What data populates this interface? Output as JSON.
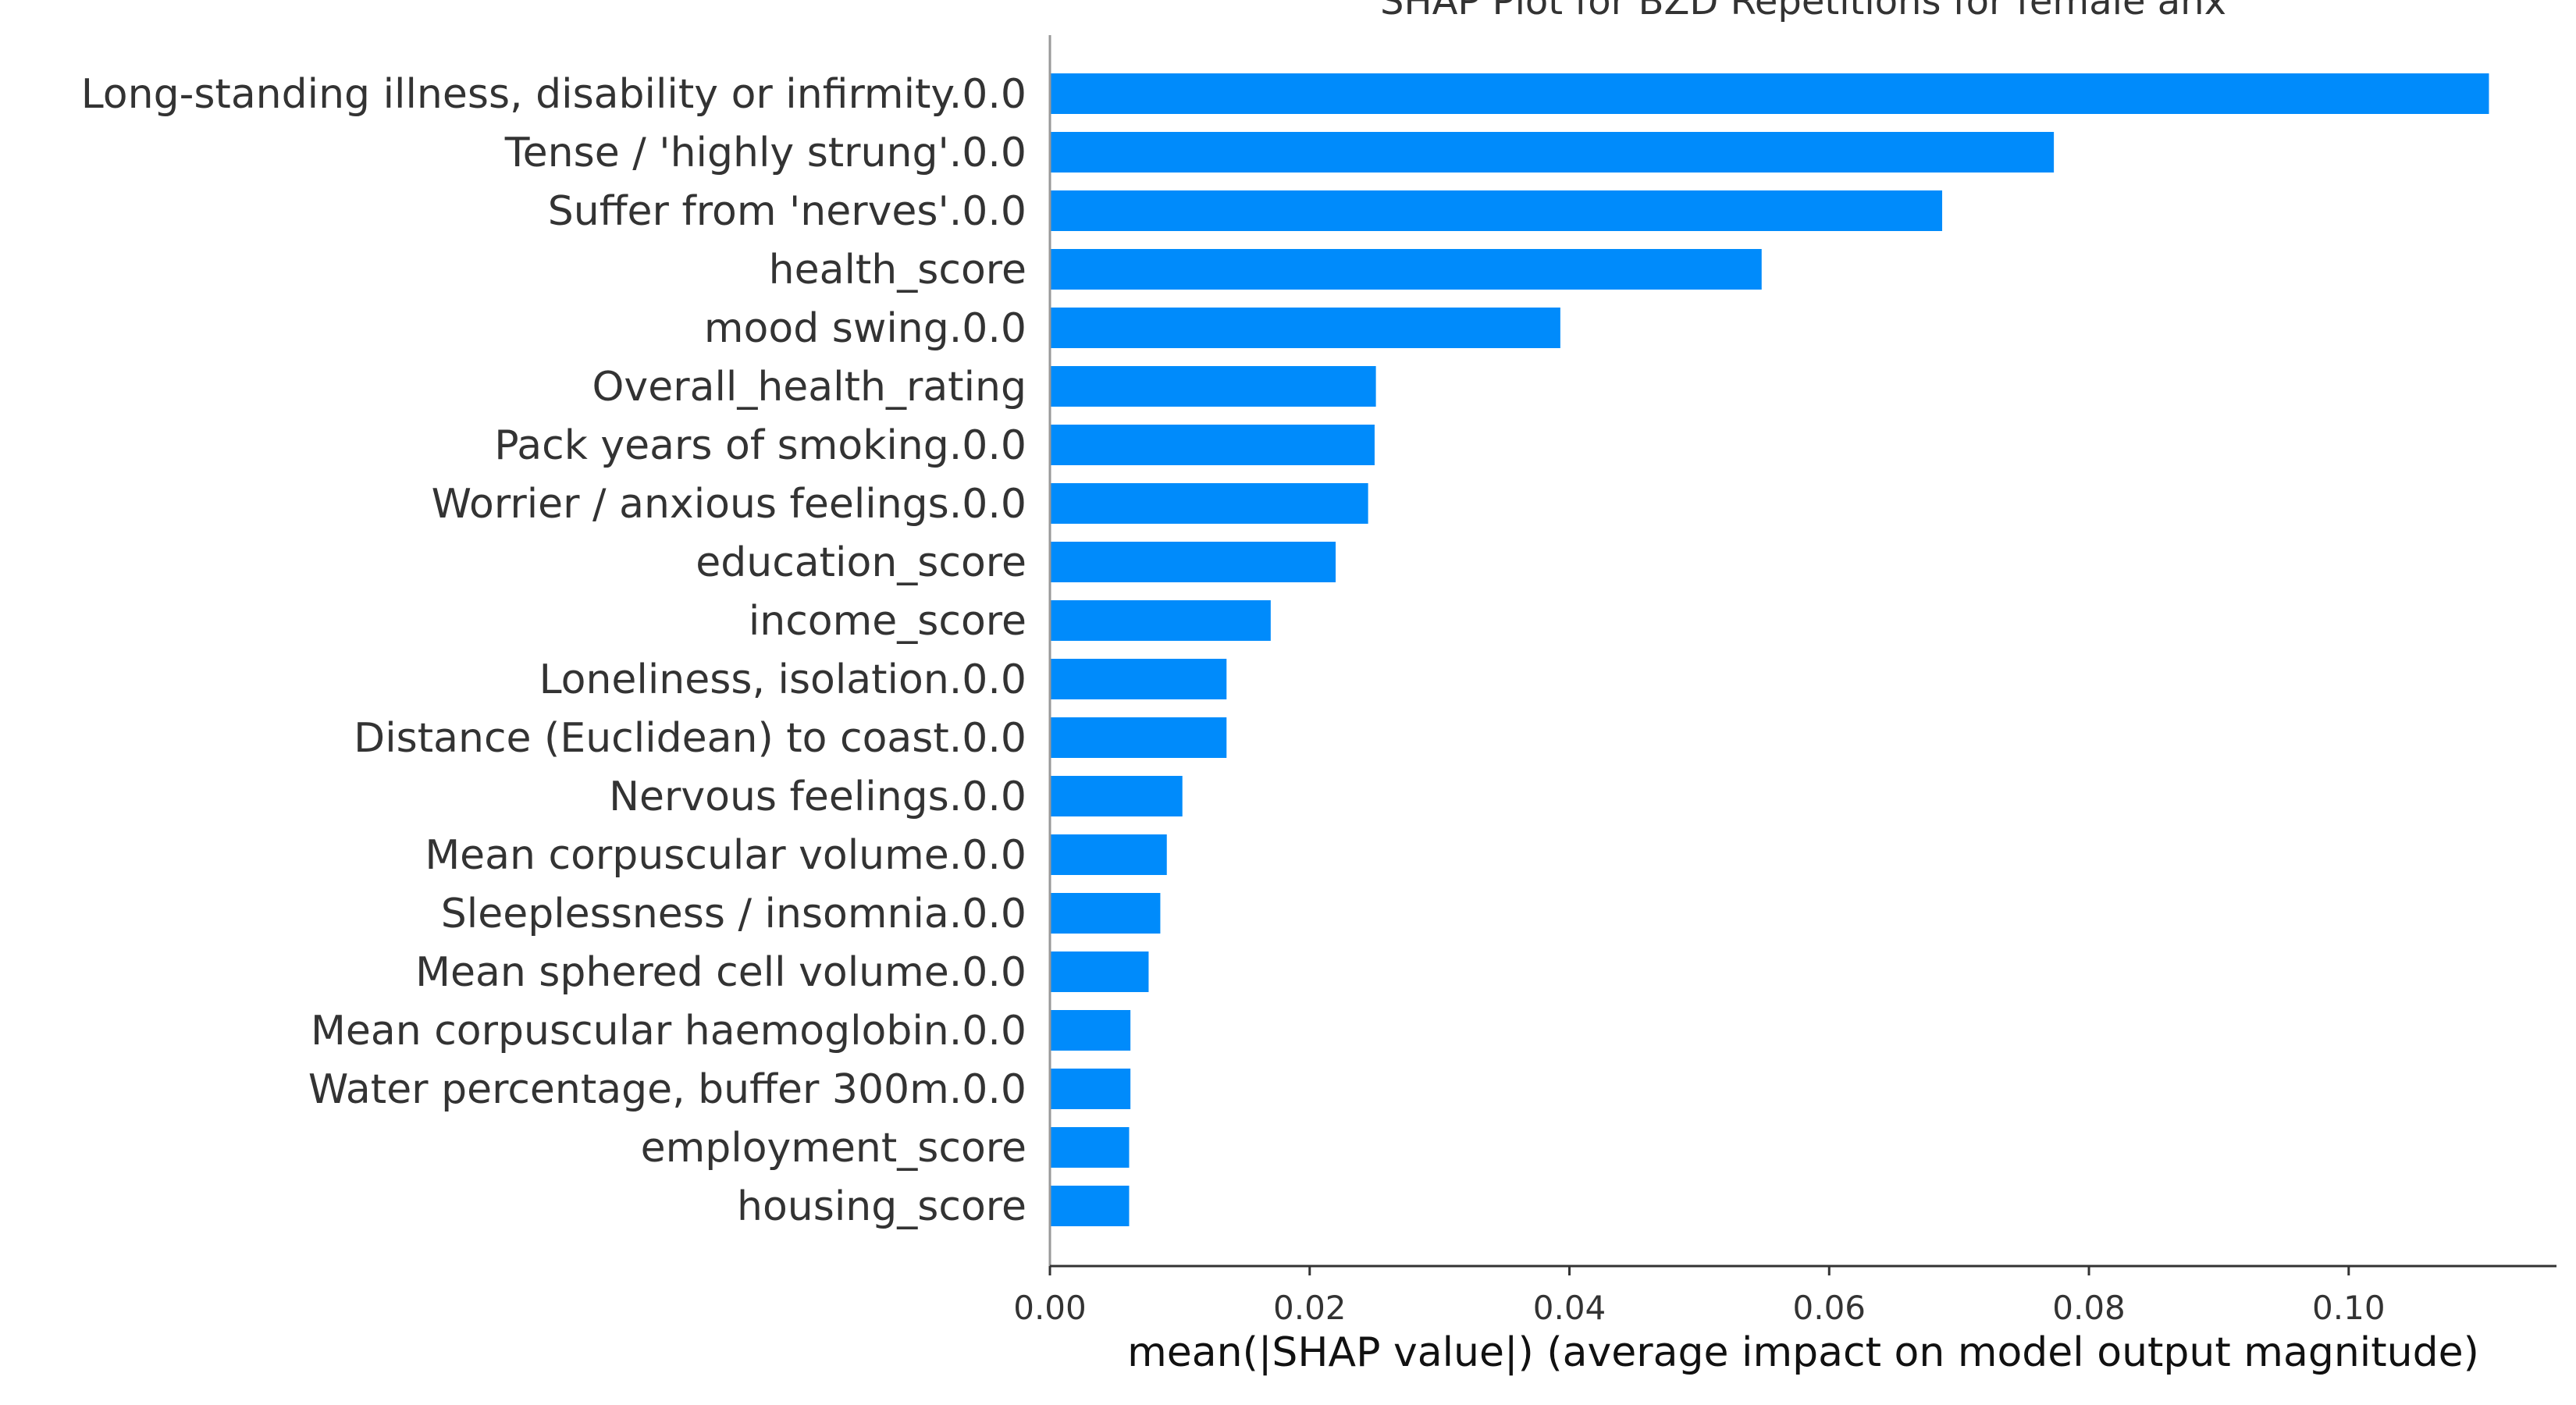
{
  "chart_data": {
    "type": "bar",
    "orientation": "horizontal",
    "title": "SHAP Plot for BZD Repetitions for female anx",
    "xlabel": "mean(|SHAP value|) (average impact on model output magnitude)",
    "ylabel": "",
    "xlim": [
      0.0,
      0.116
    ],
    "xticks": [
      0.0,
      0.02,
      0.04,
      0.06,
      0.08,
      0.1
    ],
    "xtick_labels": [
      "0.00",
      "0.02",
      "0.04",
      "0.06",
      "0.08",
      "0.10"
    ],
    "grid": false,
    "bar_color": "#008bfb",
    "categories": [
      "Long-standing illness, disability or infirmity.0.0",
      "Tense / 'highly strung'.0.0",
      "Suffer from 'nerves'.0.0",
      "health_score",
      "mood swing.0.0",
      "Overall_health_rating",
      "Pack years of smoking.0.0",
      "Worrier / anxious feelings.0.0",
      "education_score",
      "income_score",
      "Loneliness, isolation.0.0",
      "Distance (Euclidean) to coast.0.0",
      "Nervous feelings.0.0",
      "Mean corpuscular volume.0.0",
      "Sleeplessness / insomnia.0.0",
      "Mean sphered cell volume.0.0",
      "Mean corpuscular haemoglobin.0.0",
      "Water percentage, buffer 300m.0.0",
      "employment_score",
      "housing_score"
    ],
    "values": [
      0.1108,
      0.0773,
      0.0687,
      0.0548,
      0.0393,
      0.0251,
      0.025,
      0.0245,
      0.022,
      0.017,
      0.0136,
      0.0136,
      0.0102,
      0.009,
      0.0085,
      0.0076,
      0.0062,
      0.0062,
      0.0061,
      0.0061
    ]
  }
}
